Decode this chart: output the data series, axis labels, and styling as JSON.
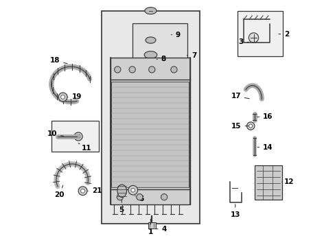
{
  "bg_color": "#ffffff",
  "diagram_bg": "#e8e8e8",
  "line_color": "#333333",
  "box_color": "#333333",
  "text_color": "#000000",
  "title": ""
}
